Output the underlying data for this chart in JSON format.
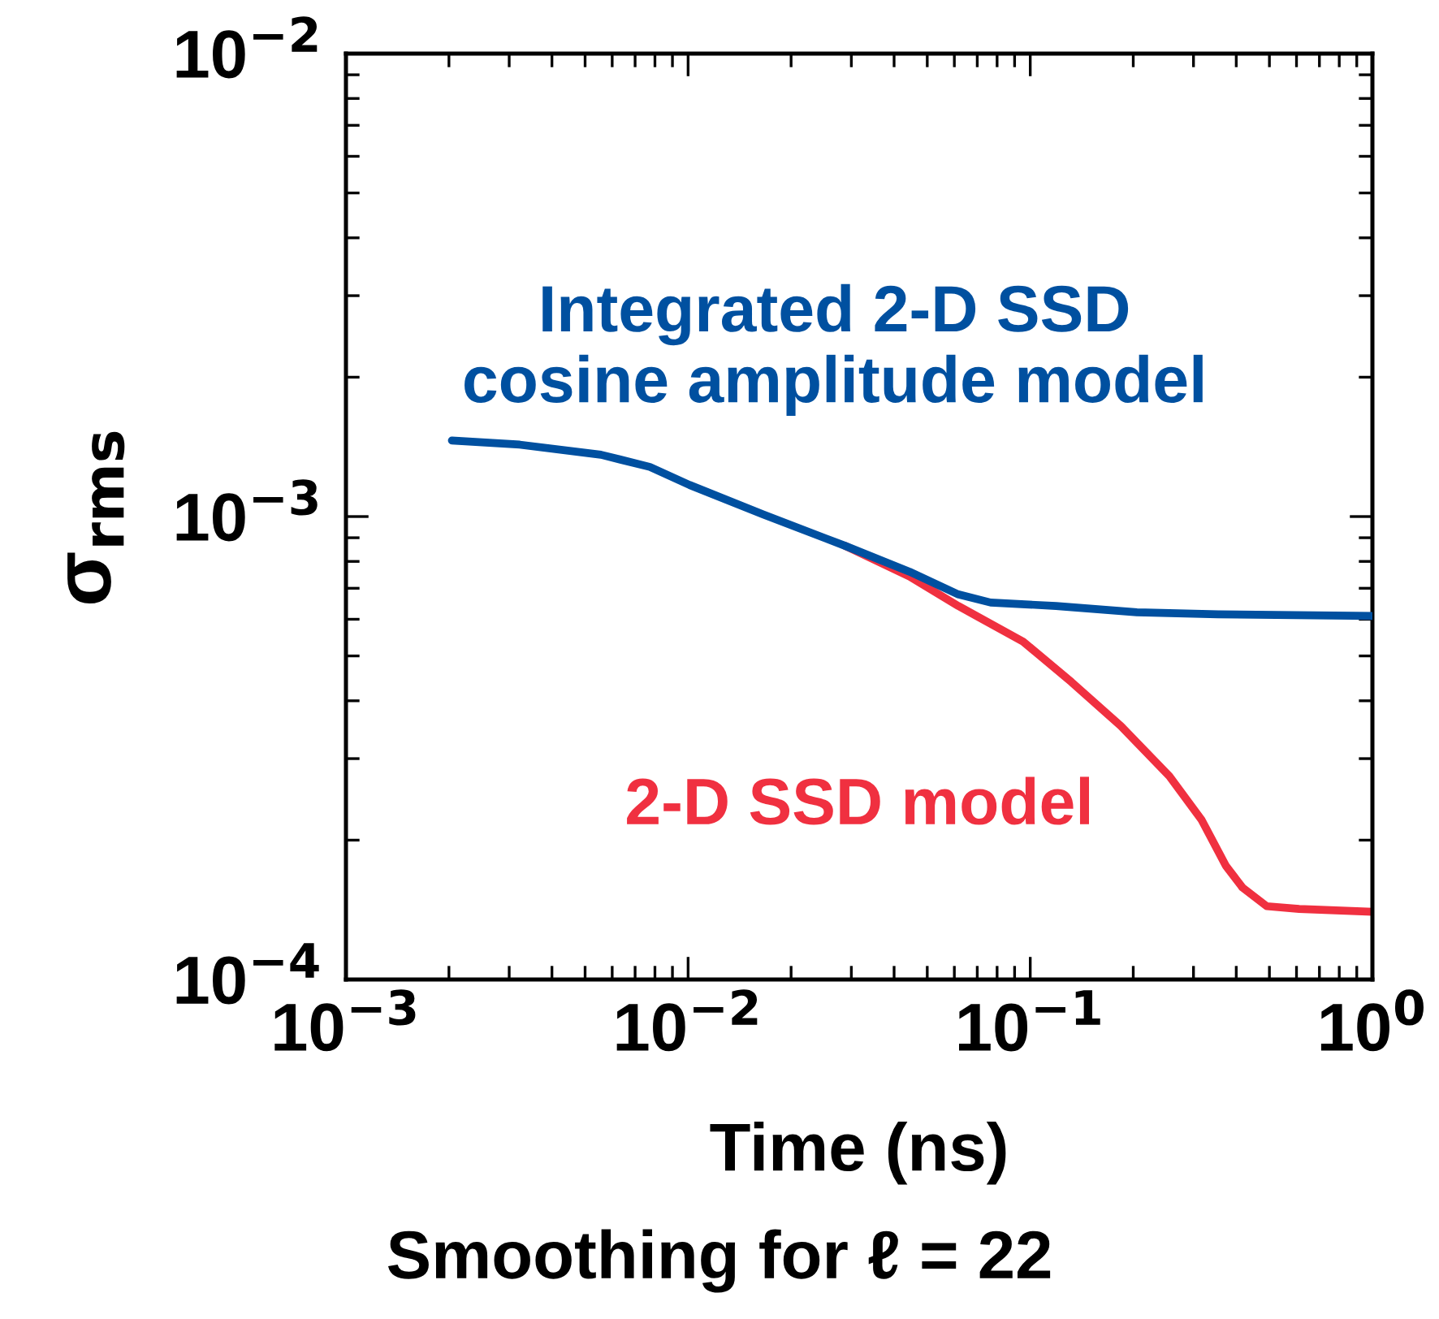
{
  "chart_data": {
    "type": "line",
    "xlabel": "Time (ns)",
    "ylabel": "σ$_{rms}$",
    "log": "xy",
    "grid": false,
    "legend": false,
    "xlim": [
      0.001,
      1
    ],
    "ylim": [
      0.0001,
      0.01
    ],
    "xticks": [
      {
        "value": 0.001,
        "label": "10$^{−3}$"
      },
      {
        "value": 0.01,
        "label": "10$^{−2}$"
      },
      {
        "value": 0.1,
        "label": "10$^{−1}$"
      },
      {
        "value": 1,
        "label": "10$^{0}$"
      }
    ],
    "yticks": [
      {
        "value": 0.0001,
        "label": "10$^{−4}$"
      },
      {
        "value": 0.001,
        "label": "10$^{−3}$"
      },
      {
        "value": 0.01,
        "label": "10$^{−2}$"
      }
    ],
    "annotations": [
      "Smoothing for ℓ = 22"
    ],
    "series": [
      {
        "name": "Integrated 2-D SSD\ncosine amplitude model",
        "color": "#0050a0",
        "x": [
          0.00204,
          0.00322,
          0.00556,
          0.00773,
          0.0101,
          0.0166,
          0.0287,
          0.0444,
          0.0616,
          0.0766,
          0.119,
          0.205,
          0.354,
          1.0
        ],
        "values": [
          0.00146,
          0.00143,
          0.00136,
          0.00128,
          0.00117,
          0.00101,
          0.000865,
          0.00076,
          0.000679,
          0.000652,
          0.000641,
          0.000621,
          0.000615,
          0.00061
        ]
      },
      {
        "name": "2-D SSD model",
        "color": "#f03040",
        "x": [
          0.0287,
          0.0444,
          0.0616,
          0.0953,
          0.132,
          0.184,
          0.255,
          0.317,
          0.373,
          0.417,
          0.491,
          0.611,
          1.0
        ],
        "values": [
          0.000865,
          0.000742,
          0.000641,
          0.000537,
          0.000439,
          0.000353,
          0.000275,
          0.000221,
          0.000176,
          0.000158,
          0.000144,
          0.000142,
          0.00014
        ]
      }
    ]
  }
}
